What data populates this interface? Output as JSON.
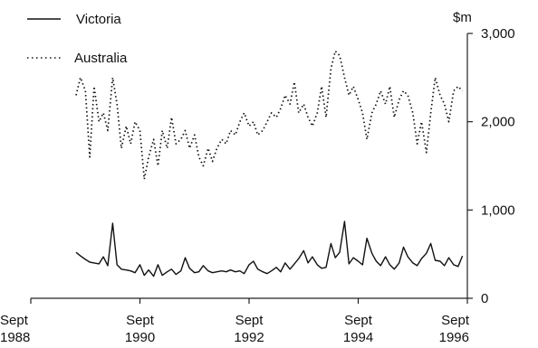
{
  "chart_data": {
    "type": "line",
    "title": "",
    "xlabel": "",
    "ylabel": "$m",
    "ylim": [
      0,
      3000
    ],
    "y_ticks": [
      "0",
      "1,000",
      "2,000",
      "3,000"
    ],
    "x_ticks": [
      {
        "month": "Sept",
        "year": "1988",
        "value": 1988.67
      },
      {
        "month": "Sept",
        "year": "1990",
        "value": 1990.67
      },
      {
        "month": "Sept",
        "year": "1992",
        "value": 1992.67
      },
      {
        "month": "Sept",
        "year": "1994",
        "value": 1994.67
      },
      {
        "month": "Sept",
        "year": "1996",
        "value": 1996.67
      }
    ],
    "xlim": [
      1988.67,
      1996.67
    ],
    "grid": false,
    "legend_position": "top-left",
    "series": [
      {
        "name": "Victoria",
        "style": "solid",
        "x": [
          1989.5,
          1989.58,
          1989.67,
          1989.75,
          1989.83,
          1989.92,
          1990.0,
          1990.08,
          1990.17,
          1990.25,
          1990.33,
          1990.42,
          1990.5,
          1990.58,
          1990.67,
          1990.75,
          1990.83,
          1990.92,
          1991.0,
          1991.08,
          1991.17,
          1991.25,
          1991.33,
          1991.42,
          1991.5,
          1991.58,
          1991.67,
          1991.75,
          1991.83,
          1991.92,
          1992.0,
          1992.08,
          1992.17,
          1992.25,
          1992.33,
          1992.42,
          1992.5,
          1992.58,
          1992.67,
          1992.75,
          1992.83,
          1992.92,
          1993.0,
          1993.08,
          1993.17,
          1993.25,
          1993.33,
          1993.42,
          1993.5,
          1993.58,
          1993.67,
          1993.75,
          1993.83,
          1993.92,
          1994.0,
          1994.08,
          1994.17,
          1994.25,
          1994.33,
          1994.42,
          1994.5,
          1994.58,
          1994.67,
          1994.75,
          1994.83,
          1994.92,
          1995.0,
          1995.08,
          1995.17,
          1995.25,
          1995.33,
          1995.42,
          1995.5,
          1995.58,
          1995.67,
          1995.75,
          1995.83,
          1995.92,
          1996.0,
          1996.08,
          1996.17,
          1996.25,
          1996.33,
          1996.42,
          1996.5,
          1996.58
        ],
        "values": [
          520,
          480,
          440,
          410,
          400,
          390,
          470,
          370,
          850,
          380,
          330,
          320,
          310,
          290,
          380,
          260,
          320,
          250,
          380,
          260,
          300,
          330,
          270,
          310,
          460,
          340,
          290,
          300,
          370,
          310,
          290,
          300,
          310,
          300,
          320,
          300,
          310,
          280,
          380,
          420,
          330,
          300,
          280,
          310,
          350,
          300,
          400,
          330,
          390,
          450,
          540,
          400,
          470,
          380,
          340,
          350,
          620,
          460,
          520,
          870,
          390,
          460,
          420,
          380,
          680,
          510,
          420,
          370,
          470,
          380,
          330,
          400,
          580,
          470,
          400,
          370,
          450,
          510,
          620,
          430,
          420,
          370,
          460,
          380,
          360,
          480
        ]
      },
      {
        "name": "Australia",
        "style": "dotted",
        "x": [
          1989.5,
          1989.58,
          1989.67,
          1989.75,
          1989.83,
          1989.92,
          1990.0,
          1990.08,
          1990.17,
          1990.25,
          1990.33,
          1990.42,
          1990.5,
          1990.58,
          1990.67,
          1990.75,
          1990.83,
          1990.92,
          1991.0,
          1991.08,
          1991.17,
          1991.25,
          1991.33,
          1991.42,
          1991.5,
          1991.58,
          1991.67,
          1991.75,
          1991.83,
          1991.92,
          1992.0,
          1992.08,
          1992.17,
          1992.25,
          1992.33,
          1992.42,
          1992.5,
          1992.58,
          1992.67,
          1992.75,
          1992.83,
          1992.92,
          1993.0,
          1993.08,
          1993.17,
          1993.25,
          1993.33,
          1993.42,
          1993.5,
          1993.58,
          1993.67,
          1993.75,
          1993.83,
          1993.92,
          1994.0,
          1994.08,
          1994.17,
          1994.25,
          1994.33,
          1994.42,
          1994.5,
          1994.58,
          1994.67,
          1994.75,
          1994.83,
          1994.92,
          1995.0,
          1995.08,
          1995.17,
          1995.25,
          1995.33,
          1995.42,
          1995.5,
          1995.58,
          1995.67,
          1995.75,
          1995.83,
          1995.92,
          1996.0,
          1996.08,
          1996.17,
          1996.25,
          1996.33,
          1996.42,
          1996.5,
          1996.58
        ],
        "values": [
          2300,
          2500,
          2350,
          1600,
          2400,
          2000,
          2100,
          1900,
          2500,
          2200,
          1700,
          1950,
          1750,
          2000,
          1900,
          1350,
          1600,
          1800,
          1500,
          1900,
          1700,
          2050,
          1750,
          1800,
          1900,
          1700,
          1850,
          1600,
          1500,
          1700,
          1550,
          1700,
          1800,
          1750,
          1900,
          1850,
          2000,
          2100,
          1950,
          2000,
          1850,
          1900,
          2000,
          2100,
          2050,
          2150,
          2300,
          2200,
          2450,
          2100,
          2200,
          2050,
          1950,
          2100,
          2400,
          2050,
          2600,
          2800,
          2750,
          2500,
          2300,
          2400,
          2250,
          2100,
          1800,
          2100,
          2200,
          2350,
          2200,
          2400,
          2050,
          2250,
          2350,
          2300,
          2100,
          1750,
          2000,
          1650,
          2100,
          2500,
          2300,
          2200,
          2000,
          2350,
          2400,
          2350
        ]
      }
    ]
  }
}
